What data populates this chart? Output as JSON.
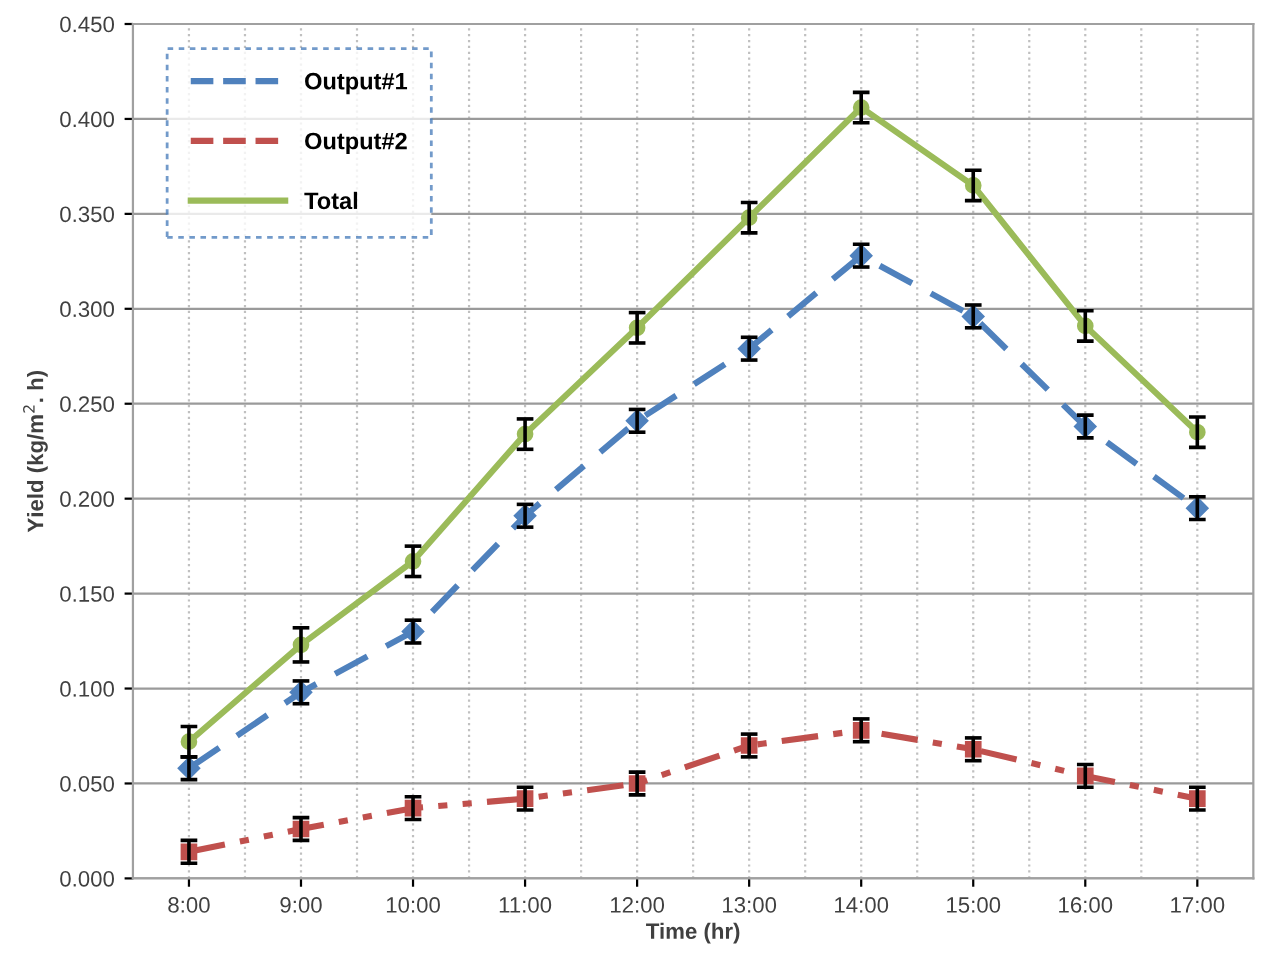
{
  "chart_data": {
    "type": "line",
    "xlabel": "Time (hr)",
    "ylabel": "Yield (kg/m$^{2}$. h)",
    "categories": [
      "8:00",
      "9:00",
      "10:00",
      "11:00",
      "12:00",
      "13:00",
      "14:00",
      "15:00",
      "16:00",
      "17:00"
    ],
    "ylim": [
      0,
      0.45
    ],
    "yticks": [
      {
        "value": 0,
        "label": "0.000"
      },
      {
        "value": 0.05,
        "label": "0.050"
      },
      {
        "value": 0.1,
        "label": "0.100"
      },
      {
        "value": 0.15,
        "label": "0.150"
      },
      {
        "value": 0.2,
        "label": "0.200"
      },
      {
        "value": 0.25,
        "label": "0.250"
      },
      {
        "value": 0.3,
        "label": "0.300"
      },
      {
        "value": 0.35,
        "label": "0.350"
      },
      {
        "value": 0.4,
        "label": "0.400"
      },
      {
        "value": 0.45,
        "label": "0.450"
      }
    ],
    "grid": true,
    "legend": "top left",
    "series": [
      {
        "name": "Output#1",
        "color": "#4f81bd",
        "line_style": "dashed",
        "marker": "diamond",
        "values": [
          0.058,
          0.098,
          0.13,
          0.191,
          0.241,
          0.279,
          0.328,
          0.296,
          0.238,
          0.195
        ],
        "errors": [
          0.006,
          0.006,
          0.006,
          0.006,
          0.006,
          0.006,
          0.006,
          0.006,
          0.006,
          0.006
        ]
      },
      {
        "name": "Output#2",
        "color": "#c0504d",
        "line_style": "dashdotdot",
        "marker": "square",
        "values": [
          0.014,
          0.026,
          0.037,
          0.042,
          0.05,
          0.07,
          0.078,
          0.068,
          0.054,
          0.042
        ],
        "errors": [
          0.006,
          0.006,
          0.006,
          0.006,
          0.006,
          0.006,
          0.006,
          0.006,
          0.006,
          0.006
        ]
      },
      {
        "name": "Total",
        "color": "#9bbb59",
        "line_style": "solid",
        "marker": "circle",
        "values": [
          0.072,
          0.123,
          0.167,
          0.234,
          0.29,
          0.348,
          0.406,
          0.365,
          0.291,
          0.235
        ],
        "errors": [
          0.008,
          0.009,
          0.008,
          0.008,
          0.008,
          0.008,
          0.008,
          0.008,
          0.008,
          0.008
        ]
      }
    ]
  }
}
